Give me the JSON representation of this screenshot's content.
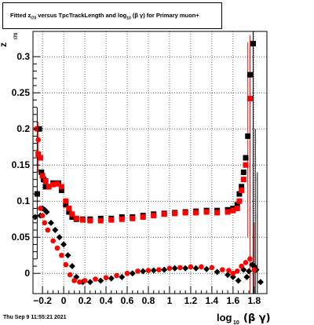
{
  "title": {
    "prefix": "Fitted  z",
    "sub1": "I70",
    "middle": "  versus TpcTrackLength and log",
    "sub2": "10",
    "suffix": " (β  γ) for Primary muon+"
  },
  "footer": {
    "timestamp": "Thu Sep  9 11:55:21 2021"
  },
  "colors": {
    "black": "#000000",
    "red": "#ff0000"
  },
  "chart_data": {
    "type": "scatter",
    "xlabel": {
      "main": "log",
      "sub": "10",
      "tail": "(β γ)"
    },
    "ylabel": {
      "main": "z",
      "sub": "I70"
    },
    "xlim": [
      -0.29,
      1.92
    ],
    "ylim": [
      -0.028,
      0.335
    ],
    "xticks": [
      {
        "v": -0.2,
        "t": "−0.2"
      },
      {
        "v": 0,
        "t": "0"
      },
      {
        "v": 0.2,
        "t": "0.2"
      },
      {
        "v": 0.4,
        "t": "0.4"
      },
      {
        "v": 0.6,
        "t": "0.6"
      },
      {
        "v": 0.8,
        "t": "0.8"
      },
      {
        "v": 1,
        "t": "1"
      },
      {
        "v": 1.2,
        "t": "1.2"
      },
      {
        "v": 1.4,
        "t": "1.4"
      },
      {
        "v": 1.6,
        "t": "1.6"
      },
      {
        "v": 1.8,
        "t": "1.8"
      }
    ],
    "yticks": [
      {
        "v": 0,
        "t": "0"
      },
      {
        "v": 0.05,
        "t": "0.05"
      },
      {
        "v": 0.1,
        "t": "0.1"
      },
      {
        "v": 0.15,
        "t": "0.15"
      },
      {
        "v": 0.2,
        "t": "0.2"
      },
      {
        "v": 0.25,
        "t": "0.25"
      },
      {
        "v": 0.3,
        "t": "0.3"
      }
    ],
    "grid": true,
    "series": [
      {
        "color": "black",
        "marker": "square",
        "points": [
          [
            -0.25,
            0.11
          ],
          [
            -0.23,
            0.2
          ],
          [
            -0.21,
            0.14
          ],
          [
            -0.19,
            0.13
          ],
          [
            -0.17,
            0.12
          ],
          [
            -0.15,
            0.12
          ],
          [
            -0.1,
            0.125
          ],
          [
            -0.05,
            0.125
          ],
          [
            -0.02,
            0.115
          ],
          [
            0.02,
            0.095
          ],
          [
            0.05,
            0.085
          ],
          [
            0.08,
            0.078
          ],
          [
            0.12,
            0.075
          ],
          [
            0.18,
            0.075
          ],
          [
            0.25,
            0.075
          ],
          [
            0.35,
            0.076
          ],
          [
            0.45,
            0.076
          ],
          [
            0.55,
            0.078
          ],
          [
            0.65,
            0.078
          ],
          [
            0.75,
            0.08
          ],
          [
            0.85,
            0.082
          ],
          [
            0.95,
            0.083
          ],
          [
            1.05,
            0.084
          ],
          [
            1.15,
            0.085
          ],
          [
            1.25,
            0.086
          ],
          [
            1.35,
            0.087
          ],
          [
            1.45,
            0.087
          ],
          [
            1.55,
            0.088
          ],
          [
            1.6,
            0.09
          ],
          [
            1.64,
            0.095
          ],
          [
            1.66,
            0.11
          ],
          [
            1.68,
            0.12
          ],
          [
            1.7,
            0.14
          ],
          [
            1.72,
            0.16
          ],
          [
            1.74,
            0.19
          ],
          [
            1.76,
            0.275
          ],
          [
            1.79,
            0.318
          ]
        ]
      },
      {
        "color": "black",
        "marker": "diamond",
        "points": [
          [
            -0.27,
            0.078
          ],
          [
            -0.25,
            0.11
          ],
          [
            -0.22,
            0.08
          ],
          [
            -0.2,
            0.09
          ],
          [
            -0.18,
            0.088
          ],
          [
            -0.16,
            0.085
          ],
          [
            -0.12,
            0.07
          ],
          [
            -0.08,
            0.06
          ],
          [
            -0.04,
            0.05
          ],
          [
            0,
            0.04
          ],
          [
            0.04,
            0.025
          ],
          [
            0.08,
            0.01
          ],
          [
            0.12,
            -0.005
          ],
          [
            0.18,
            -0.012
          ],
          [
            0.25,
            -0.012
          ],
          [
            0.35,
            -0.01
          ],
          [
            0.45,
            -0.007
          ],
          [
            0.55,
            -0.005
          ],
          [
            0.65,
            0
          ],
          [
            0.75,
            0.003
          ],
          [
            0.85,
            0.004
          ],
          [
            0.95,
            0.005
          ],
          [
            1.05,
            0.007
          ],
          [
            1.15,
            0.007
          ],
          [
            1.25,
            0.007
          ],
          [
            1.35,
            0.006
          ],
          [
            1.45,
            0.002
          ],
          [
            1.55,
            -0.002
          ],
          [
            1.6,
            -0.005
          ],
          [
            1.65,
            -0.01
          ],
          [
            1.7,
            0.005
          ],
          [
            1.73,
            -0.005
          ],
          [
            1.75,
            0.003
          ],
          [
            1.78,
            0.012
          ],
          [
            1.8,
            0.01
          ],
          [
            1.82,
            0.005
          ],
          [
            1.86,
            -0.012
          ]
        ]
      },
      {
        "color": "red",
        "marker": "square",
        "points": [
          [
            -0.24,
            0.165
          ],
          [
            -0.22,
            0.16
          ],
          [
            -0.2,
            0.135
          ],
          [
            -0.17,
            0.128
          ],
          [
            -0.14,
            0.12
          ],
          [
            -0.1,
            0.123
          ],
          [
            -0.06,
            0.124
          ],
          [
            -0.02,
            0.12
          ],
          [
            0.02,
            0.1
          ],
          [
            0.05,
            0.09
          ],
          [
            0.08,
            0.082
          ],
          [
            0.12,
            0.076
          ],
          [
            0.18,
            0.074
          ],
          [
            0.25,
            0.073
          ],
          [
            0.35,
            0.073
          ],
          [
            0.45,
            0.074
          ],
          [
            0.55,
            0.075
          ],
          [
            0.65,
            0.076
          ],
          [
            0.75,
            0.078
          ],
          [
            0.85,
            0.08
          ],
          [
            0.95,
            0.082
          ],
          [
            1.05,
            0.083
          ],
          [
            1.15,
            0.084
          ],
          [
            1.25,
            0.084
          ],
          [
            1.35,
            0.085
          ],
          [
            1.45,
            0.084
          ],
          [
            1.55,
            0.085
          ],
          [
            1.6,
            0.087
          ],
          [
            1.64,
            0.09
          ],
          [
            1.66,
            0.1
          ],
          [
            1.68,
            0.115
          ],
          [
            1.7,
            0.13
          ],
          [
            1.72,
            0.15
          ],
          [
            1.76,
            0.242
          ]
        ]
      },
      {
        "color": "red",
        "marker": "circle",
        "points": [
          [
            -0.26,
            0.2
          ],
          [
            -0.24,
            0.185
          ],
          [
            -0.22,
            0.09
          ],
          [
            -0.2,
            0.08
          ],
          [
            -0.18,
            0.07
          ],
          [
            -0.15,
            0.06
          ],
          [
            -0.1,
            0.045
          ],
          [
            -0.06,
            0.035
          ],
          [
            -0.02,
            0.025
          ],
          [
            0.02,
            0.012
          ],
          [
            0.06,
            -0.002
          ],
          [
            0.1,
            -0.01
          ],
          [
            0.15,
            -0.012
          ],
          [
            0.2,
            -0.01
          ],
          [
            0.3,
            -0.008
          ],
          [
            0.4,
            -0.006
          ],
          [
            0.5,
            -0.003
          ],
          [
            0.6,
            0
          ],
          [
            0.7,
            0.003
          ],
          [
            0.8,
            0.004
          ],
          [
            0.9,
            0.005
          ],
          [
            1,
            0.007
          ],
          [
            1.1,
            0.008
          ],
          [
            1.2,
            0.009
          ],
          [
            1.3,
            0.009
          ],
          [
            1.4,
            0.008
          ],
          [
            1.5,
            0.005
          ],
          [
            1.56,
            0.004
          ],
          [
            1.6,
            0
          ],
          [
            1.64,
            0.003
          ],
          [
            1.68,
            0.01
          ],
          [
            1.72,
            0.015
          ],
          [
            1.76,
            0.02
          ],
          [
            1.8,
            0.005
          ]
        ]
      }
    ],
    "error_bars": [
      {
        "x": -0.25,
        "lo": 0.02,
        "hi": 0.23,
        "color": "black"
      },
      {
        "x": -0.24,
        "lo": 0.14,
        "hi": 0.21,
        "color": "red"
      },
      {
        "x": 1.74,
        "lo": 0.05,
        "hi": 0.32,
        "color": "red"
      },
      {
        "x": 1.76,
        "lo": -0.03,
        "hi": 0.33,
        "color": "red"
      },
      {
        "x": 1.79,
        "lo": -0.03,
        "hi": 0.335,
        "color": "black"
      },
      {
        "x": 1.81,
        "lo": -0.03,
        "hi": 0.2,
        "color": "black"
      },
      {
        "x": 1.83,
        "lo": -0.03,
        "hi": 0.14,
        "color": "black"
      },
      {
        "x": 1.8,
        "lo": -0.03,
        "hi": 0.07,
        "color": "red"
      }
    ]
  }
}
